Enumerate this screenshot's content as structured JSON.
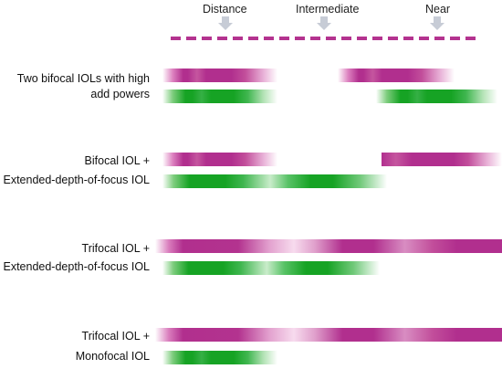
{
  "header": {
    "distance": "Distance",
    "intermediate": "Intermediate",
    "near": "Near"
  },
  "rows": [
    {
      "label_line1": "Two bifocal IOLs with high",
      "label_line2": "add powers"
    },
    {
      "label_line1": "Bifocal IOL +",
      "label_line2": "Extended-depth-of-focus IOL"
    },
    {
      "label_line1": "Trifocal IOL +",
      "label_line2": "Extended-depth-of-focus IOL"
    },
    {
      "label_line1": "Trifocal IOL +",
      "label_line2": "Monofocal IOL"
    }
  ],
  "colors": {
    "magenta": "#b12f8e",
    "green": "#16a324",
    "arrow": "#c7ccd6"
  }
}
